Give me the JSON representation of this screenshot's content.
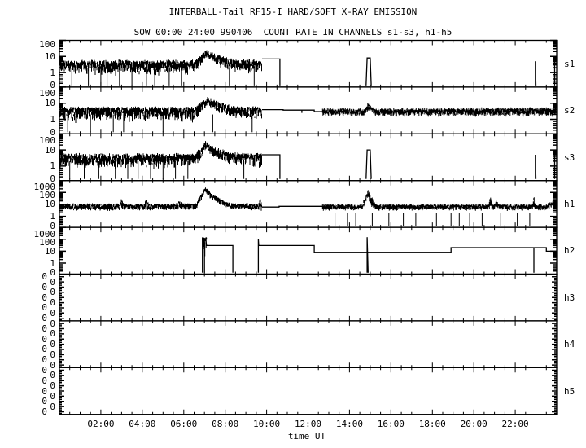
{
  "chart_data": {
    "type": "line",
    "title": "INTERBALL-Tail RF15-I HARD/SOFT X-RAY EMISSION",
    "subtitle": "SOW 00:00 24:00 990406  COUNT RATE IN CHANNELS s1-s3, h1-h5",
    "xlabel": "time UT",
    "xlim": [
      0,
      24
    ],
    "xticks": [
      "02:00",
      "04:00",
      "06:00",
      "08:00",
      "10:00",
      "12:00",
      "14:00",
      "16:00",
      "18:00",
      "20:00",
      "22:00"
    ],
    "yscale": "log",
    "grid": false,
    "line_color": "#000000",
    "panels": [
      {
        "name": "s1",
        "ymax": 100,
        "yticks": [
          "100",
          "10",
          "1",
          "0"
        ],
        "noise": [
          {
            "t": [
              0,
              6.5,
              6.9,
              7.05,
              7.5,
              8.3,
              9.78
            ],
            "hi": [
              5,
              5,
              12,
              22,
              12,
              6,
              5
            ],
            "lo": [
              1,
              1,
              3,
              10,
              4,
              1.5,
              1
            ]
          }
        ],
        "dropouts": [
          0.6,
          1.4,
          2.0,
          2.3,
          2.9,
          3.5,
          4.2,
          4.6,
          5.3,
          5.9,
          8.2,
          9.4
        ],
        "lines": [
          [
            [
              9.78,
              7
            ],
            [
              10.64,
              7
            ],
            [
              10.64,
              0
            ]
          ],
          [
            [
              14.8,
              0
            ],
            [
              14.85,
              8
            ],
            [
              15.0,
              8
            ],
            [
              15.05,
              0
            ]
          ],
          [
            [
              22.97,
              0
            ],
            [
              22.97,
              5
            ],
            [
              23.0,
              0
            ]
          ],
          [
            [
              23.9,
              0
            ],
            [
              23.9,
              5
            ],
            [
              24,
              5
            ]
          ]
        ]
      },
      {
        "name": "s2",
        "ymax": 100,
        "yticks": [
          "100",
          "10",
          "1",
          "0"
        ],
        "noise": [
          {
            "t": [
              0,
              6.5,
              6.9,
              7.1,
              7.6,
              8.3,
              9.78
            ],
            "hi": [
              5,
              5,
              12,
              20,
              12,
              6,
              5
            ],
            "lo": [
              1,
              1,
              3,
              9,
              4,
              1.5,
              1
            ]
          },
          {
            "t": [
              12.7,
              14.7,
              14.9,
              15.2,
              24
            ],
            "hi": [
              4,
              4,
              9,
              4,
              4.5
            ],
            "lo": [
              2,
              2,
              4,
              2,
              2
            ]
          }
        ],
        "dropouts": [
          0.4,
          1.5,
          2.6,
          3.1,
          5.0,
          7.4,
          9.3
        ],
        "lines": [
          [
            [
              9.78,
              4
            ],
            [
              10.8,
              4
            ],
            [
              10.8,
              3.7
            ],
            [
              12.3,
              3.7
            ],
            [
              12.3,
              3
            ],
            [
              12.7,
              3
            ]
          ],
          [
            [
              11.7,
              3.8
            ],
            [
              11.7,
              2.5
            ]
          ]
        ]
      },
      {
        "name": "s3",
        "ymax": 100,
        "yticks": [
          "100",
          "10",
          "1",
          "0"
        ],
        "noise": [
          {
            "t": [
              0,
              6.5,
              6.9,
              7.05,
              7.5,
              8.3,
              9.78
            ],
            "hi": [
              5,
              5,
              14,
              28,
              13,
              6,
              5
            ],
            "lo": [
              1,
              1,
              3,
              12,
              4,
              1.5,
              1
            ]
          }
        ],
        "dropouts": [
          0.5,
          1.2,
          1.9,
          2.7,
          3.3,
          3.8,
          4.4,
          5.0,
          5.6,
          6.2,
          8.9
        ],
        "lines": [
          [
            [
              9.78,
              5
            ],
            [
              10.64,
              5
            ],
            [
              10.64,
              0
            ]
          ],
          [
            [
              14.8,
              0
            ],
            [
              14.85,
              10
            ],
            [
              15.0,
              10
            ],
            [
              15.05,
              0
            ]
          ],
          [
            [
              22.97,
              0
            ],
            [
              22.97,
              5
            ],
            [
              23.0,
              0
            ]
          ],
          [
            [
              23.9,
              0
            ],
            [
              23.9,
              5
            ],
            [
              24,
              5
            ]
          ]
        ]
      },
      {
        "name": "h1",
        "ymax": 1000,
        "yticks": [
          "1000",
          "100",
          "10",
          "1",
          "0"
        ],
        "noise": [
          {
            "t": [
              0,
              2.9,
              3.0,
              3.1,
              4.1,
              4.2,
              4.3,
              5.6,
              5.8,
              6.0,
              6.6,
              6.95,
              7.05,
              7.4,
              8.2,
              9.6,
              9.7,
              9.78
            ],
            "hi": [
              10,
              10,
              25,
              10,
              10,
              35,
              10,
              10,
              18,
              10,
              12,
              150,
              250,
              60,
              12,
              10,
              25,
              10
            ],
            "lo": [
              4,
              4,
              5,
              4,
              4,
              5,
              4,
              4,
              5,
              4,
              5,
              60,
              100,
              25,
              5,
              4,
              4,
              4
            ]
          },
          {
            "t": [
              12.7,
              14.6,
              14.8,
              14.9,
              15.1,
              15.3,
              20.7,
              20.8,
              20.9,
              21.0,
              21.1,
              21.2,
              22.85,
              22.9,
              22.95,
              23.5,
              24
            ],
            "hi": [
              9,
              9,
              50,
              150,
              30,
              9,
              9,
              50,
              9,
              9,
              20,
              9,
              9,
              60,
              9,
              9,
              25
            ],
            "lo": [
              4,
              4,
              10,
              40,
              5,
              4,
              4,
              5,
              4,
              4,
              5,
              4,
              4,
              5,
              4,
              4,
              10
            ]
          }
        ],
        "dropouts": [
          13.3,
          13.9,
          14.3,
          15.1,
          15.9,
          16.6,
          17.2,
          17.5,
          18.2,
          18.9,
          19.3,
          19.8,
          20.4,
          21.3,
          22.1,
          22.7
        ],
        "lines": [
          [
            [
              9.78,
              6
            ],
            [
              10.6,
              6
            ],
            [
              10.6,
              7
            ],
            [
              12.7,
              7
            ]
          ]
        ]
      },
      {
        "name": "h2",
        "ymax": 1000,
        "yticks": [
          "1000",
          "100",
          "10",
          "1",
          "0"
        ],
        "noise": [
          {
            "t": [
              6.9,
              7.1
            ],
            "hi": [
              130,
              130
            ],
            "lo": [
              1,
              1
            ]
          }
        ],
        "dropouts": [],
        "lines": [
          [
            [
              6.9,
              0
            ],
            [
              6.9,
              120
            ],
            [
              7.0,
              120
            ],
            [
              7.0,
              0
            ]
          ],
          [
            [
              7.05,
              120
            ],
            [
              7.1,
              30
            ],
            [
              8.37,
              30
            ],
            [
              8.37,
              0
            ]
          ],
          [
            [
              9.6,
              0
            ],
            [
              9.6,
              100
            ],
            [
              9.62,
              30
            ],
            [
              12.3,
              30
            ],
            [
              12.3,
              8
            ],
            [
              18.9,
              8
            ],
            [
              18.9,
              20
            ],
            [
              23.5,
              20
            ],
            [
              23.5,
              10
            ],
            [
              24,
              10
            ]
          ],
          [
            [
              14.85,
              0
            ],
            [
              14.85,
              150
            ],
            [
              14.9,
              0
            ]
          ],
          [
            [
              22.9,
              0
            ],
            [
              22.9,
              20
            ]
          ]
        ]
      },
      {
        "name": "h3",
        "ymax": 1,
        "yticks": [
          "0",
          "0",
          "0",
          "0",
          "0",
          "0",
          "0",
          "0",
          "0"
        ],
        "noise": [],
        "dropouts": [],
        "lines": []
      },
      {
        "name": "h4",
        "ymax": 1,
        "yticks": [
          "0",
          "0",
          "0",
          "0",
          "0",
          "0",
          "0",
          "0",
          "0"
        ],
        "noise": [],
        "dropouts": [],
        "lines": []
      },
      {
        "name": "h5",
        "ymax": 1,
        "yticks": [
          "0",
          "0",
          "0",
          "0",
          "0",
          "0",
          "0",
          "0",
          "0"
        ],
        "noise": [],
        "dropouts": [],
        "lines": []
      }
    ]
  }
}
